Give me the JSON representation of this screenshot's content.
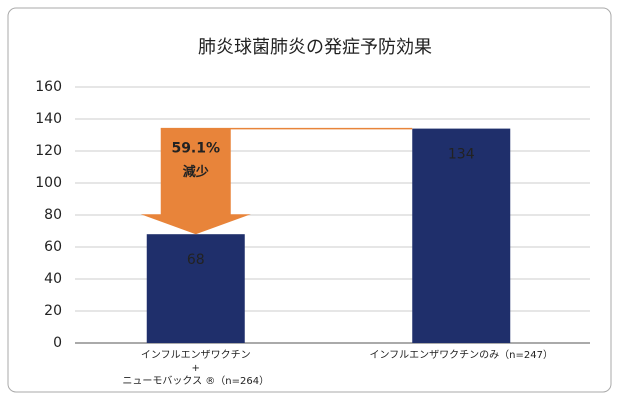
{
  "chart_data": {
    "type": "bar",
    "title": "肺炎球菌肺炎の発症予防効果",
    "categories": [
      "インフルエンザワクチン\n+\nニューモバックス ®（n=264）",
      "インフルエンザワクチンのみ（n=247）"
    ],
    "values": [
      68,
      134
    ],
    "color": "#1f2f6b",
    "ylim": [
      0,
      160
    ],
    "yticks": [
      0,
      20,
      40,
      60,
      80,
      100,
      120,
      140,
      160
    ],
    "grid": true,
    "annotations": [
      "59.1%",
      "減少"
    ],
    "annotation_color": "#e8843a"
  }
}
